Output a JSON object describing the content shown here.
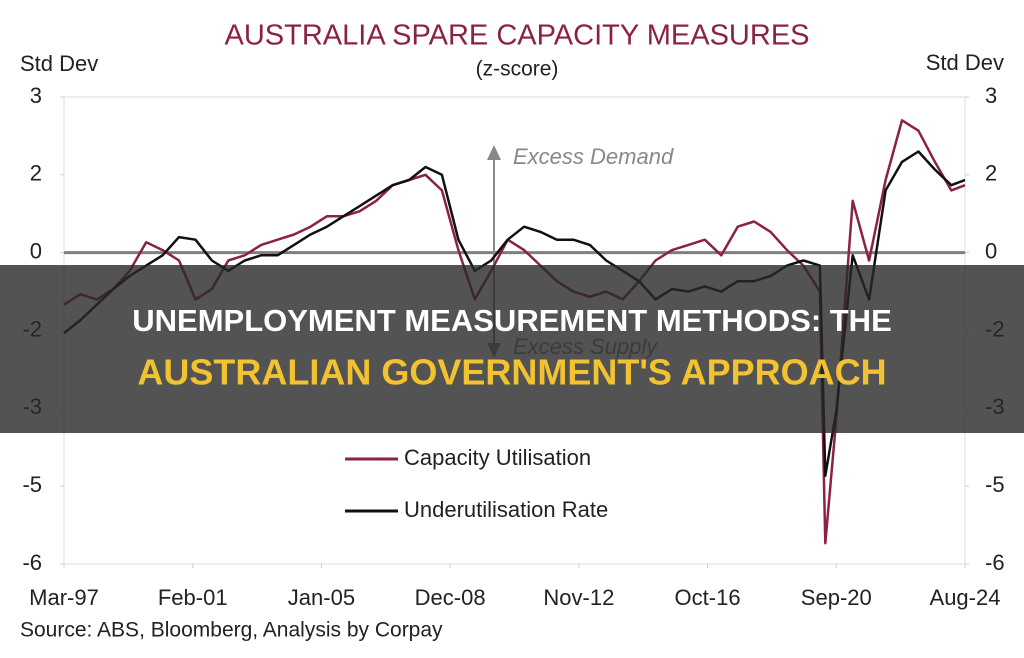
{
  "chart_data": {
    "type": "line",
    "title": "AUSTRALIA SPARE CAPACITY MEASURES",
    "subtitle": "(z-score)",
    "ylabel": "Std Dev",
    "y2label": "Std Dev",
    "source": "Source: ABS, Bloomberg, Analysis by Corpay",
    "annotations": [
      "Excess Demand",
      "Excess Supply"
    ],
    "x": [
      "Mar-97",
      "Sep-97",
      "Mar-98",
      "Sep-98",
      "Mar-99",
      "Sep-99",
      "Mar-00",
      "Sep-00",
      "Mar-01",
      "Sep-01",
      "Mar-02",
      "Sep-02",
      "Mar-03",
      "Sep-03",
      "Mar-04",
      "Sep-04",
      "Mar-05",
      "Sep-05",
      "Mar-06",
      "Sep-06",
      "Mar-07",
      "Sep-07",
      "Mar-08",
      "Sep-08",
      "Mar-09",
      "Sep-09",
      "Mar-10",
      "Sep-10",
      "Mar-11",
      "Sep-11",
      "Mar-12",
      "Sep-12",
      "Mar-13",
      "Sep-13",
      "Mar-14",
      "Sep-14",
      "Mar-15",
      "Sep-15",
      "Mar-16",
      "Sep-16",
      "Mar-17",
      "Sep-17",
      "Mar-18",
      "Sep-18",
      "Mar-19",
      "Sep-19",
      "Mar-20",
      "May-20",
      "Sep-20",
      "Mar-21",
      "Sep-21",
      "Mar-22",
      "Sep-22",
      "Mar-23",
      "Sep-23",
      "Mar-24",
      "Aug-24"
    ],
    "series": [
      {
        "name": "Capacity Utilisation",
        "color": "#8b2340",
        "values": [
          -1.0,
          -0.8,
          -0.9,
          -0.7,
          -0.35,
          0.2,
          0.05,
          -0.15,
          -0.9,
          -0.7,
          -0.15,
          -0.05,
          0.15,
          0.25,
          0.35,
          0.5,
          0.7,
          0.7,
          0.8,
          1.0,
          1.3,
          1.4,
          1.5,
          1.2,
          0.05,
          -0.9,
          -0.35,
          0.25,
          0.05,
          -0.25,
          -0.55,
          -0.75,
          -0.85,
          -0.75,
          -0.9,
          -0.55,
          -0.15,
          0.05,
          0.15,
          0.25,
          -0.05,
          0.5,
          0.6,
          0.4,
          0.05,
          -0.25,
          -0.75,
          -5.6,
          -3.2,
          1.0,
          -0.15,
          1.4,
          2.55,
          2.35,
          1.75,
          1.2,
          1.3
        ]
      },
      {
        "name": "Underutilisation Rate",
        "color": "#111111",
        "values": [
          -1.55,
          -1.3,
          -1.0,
          -0.7,
          -0.45,
          -0.25,
          -0.05,
          0.3,
          0.25,
          -0.15,
          -0.35,
          -0.15,
          -0.05,
          -0.05,
          0.15,
          0.35,
          0.5,
          0.7,
          0.9,
          1.1,
          1.3,
          1.4,
          1.65,
          1.5,
          0.25,
          -0.35,
          -0.15,
          0.25,
          0.5,
          0.4,
          0.25,
          0.25,
          0.15,
          -0.15,
          -0.35,
          -0.55,
          -0.9,
          -0.7,
          -0.75,
          -0.65,
          -0.75,
          -0.55,
          -0.55,
          -0.45,
          -0.25,
          -0.15,
          -0.25,
          -4.3,
          -3.05,
          -0.05,
          -0.9,
          1.2,
          1.75,
          1.95,
          1.6,
          1.3,
          1.4
        ]
      }
    ],
    "xlim": [
      "Mar-97",
      "Aug-24"
    ],
    "xticks": [
      "Mar-97",
      "Feb-01",
      "Jan-05",
      "Dec-08",
      "Nov-12",
      "Oct-16",
      "Sep-20",
      "Aug-24"
    ],
    "ylim": [
      -6,
      3
    ],
    "yticks": [
      3,
      {
        "value": 1.5,
        "label": "2"
      },
      0,
      {
        "value": -1.5,
        "label": "-2"
      },
      -3,
      {
        "value": -4.5,
        "label": "-5"
      },
      -6
    ],
    "y2lim": [
      -6,
      3
    ],
    "y2ticks": [
      3,
      {
        "value": 1.5,
        "label": "2"
      },
      0,
      {
        "value": -1.5,
        "label": "-2"
      },
      -3,
      {
        "value": -4.5,
        "label": "-5"
      },
      -6
    ]
  },
  "banner": {
    "lines": [
      "UNEMPLOYMENT MEASUREMENT METHODS: THE",
      "AUSTRALIAN GOVERNMENT'S APPROACH"
    ]
  }
}
